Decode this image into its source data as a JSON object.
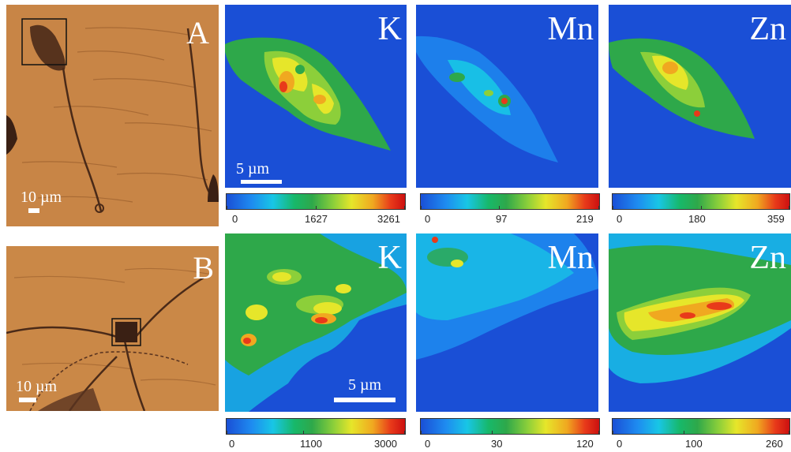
{
  "panels": {
    "A": {
      "letter": "A",
      "scale_label": "10 µm"
    },
    "B": {
      "letter": "B",
      "scale_label": "10 µm"
    }
  },
  "row1": {
    "maps": [
      {
        "element": "K",
        "colorbar": {
          "min": "0",
          "mid": "1627",
          "max": "3261"
        }
      },
      {
        "element": "Mn",
        "colorbar": {
          "min": "0",
          "mid": "97",
          "max": "219"
        }
      },
      {
        "element": "Zn",
        "colorbar": {
          "min": "0",
          "mid": "180",
          "max": "359"
        }
      }
    ],
    "scale_label": "5 µm"
  },
  "row2": {
    "maps": [
      {
        "element": "K",
        "colorbar": {
          "min": "0",
          "mid": "1100",
          "max": "3000"
        }
      },
      {
        "element": "Mn",
        "colorbar": {
          "min": "0",
          "mid": "30",
          "max": "120"
        }
      },
      {
        "element": "Zn",
        "colorbar": {
          "min": "0",
          "mid": "100",
          "max": "260"
        }
      }
    ],
    "scale_label": "5 µm"
  },
  "colors": {
    "background_map": "#1a4fd6",
    "microscopy_tan": "#c27a3a",
    "colormap_low": "#1a4fd6",
    "colormap_high": "#cc1010"
  }
}
